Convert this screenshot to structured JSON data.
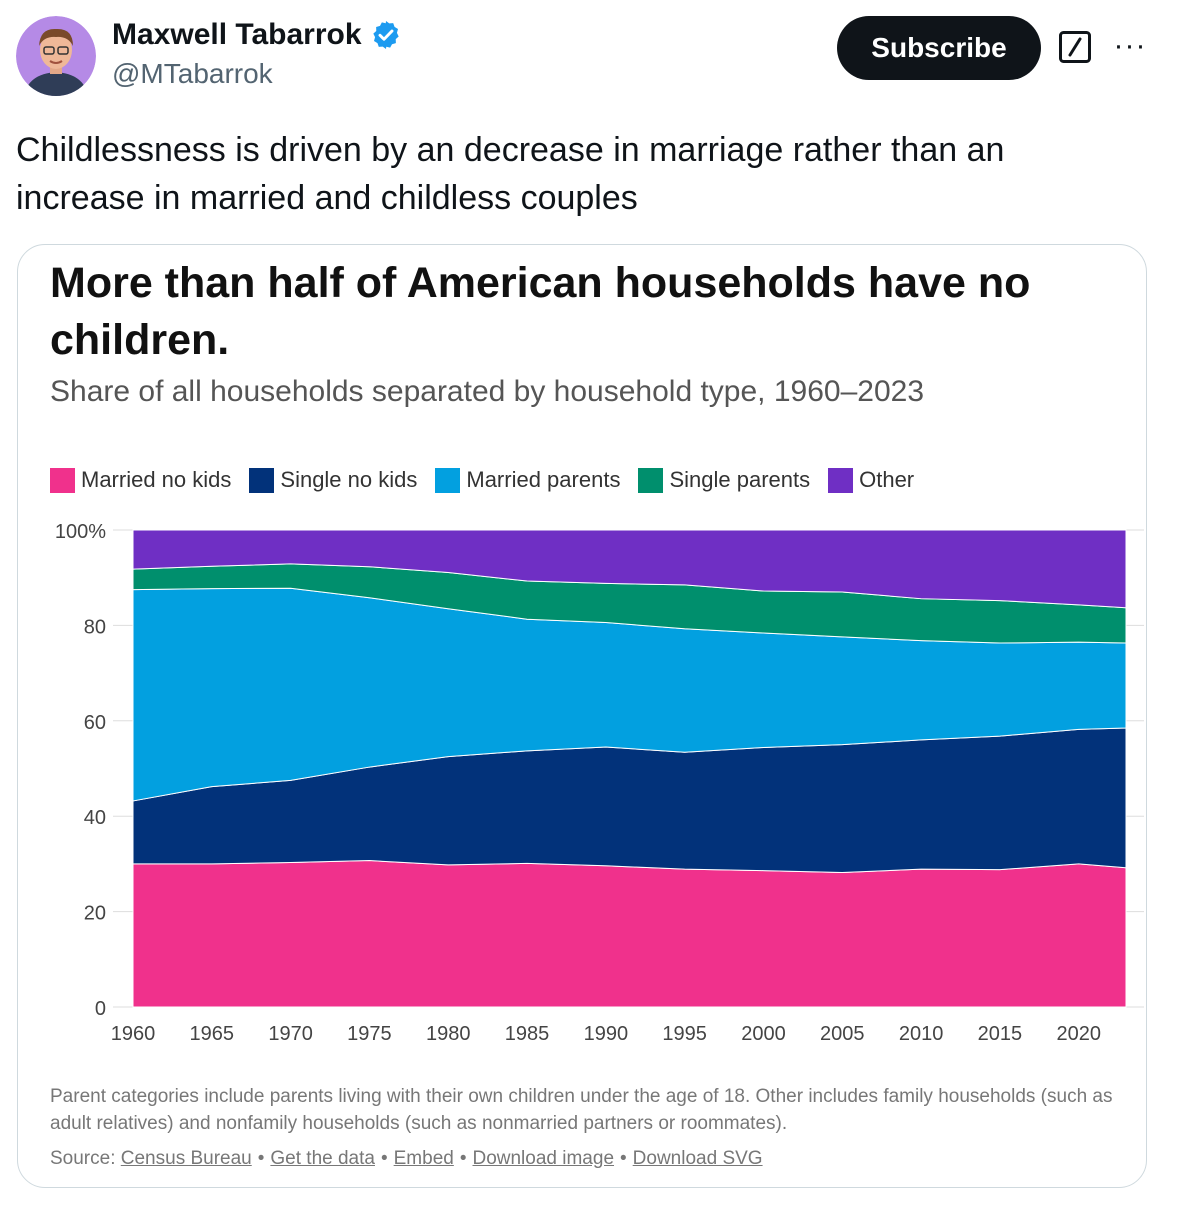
{
  "author": {
    "name": "Maxwell Tabarrok",
    "handle": "@MTabarrok",
    "verified_color": "#1d9bf0"
  },
  "actions": {
    "subscribe_label": "Subscribe",
    "grok_icon": "grok-slash-icon",
    "more_icon": "more-horizontal-icon",
    "more_label": "···"
  },
  "tweet": {
    "text": "Childlessness is driven by an decrease in marriage rather than an increase in married and childless couples"
  },
  "card": {
    "title": "More than half of American households have no children.",
    "subtitle": "Share of all households separated by household type, 1960–2023",
    "note": "Parent categories include parents living with their own children under the age of 18. Other includes family households (such as adult relatives) and nonfamily households (such as nonmarried partners or roommates).",
    "source_label": "Source:",
    "links": [
      "Census Bureau",
      "Get the data",
      "Embed",
      "Download image",
      "Download SVG"
    ],
    "link_separator": "•"
  },
  "chart_data": {
    "type": "area",
    "stacked": true,
    "x": [
      1960,
      1965,
      1970,
      1975,
      1980,
      1985,
      1990,
      1995,
      2000,
      2005,
      2010,
      2015,
      2020,
      2023
    ],
    "xticks": [
      1960,
      1965,
      1970,
      1975,
      1980,
      1985,
      1990,
      1995,
      2000,
      2005,
      2010,
      2015,
      2020
    ],
    "yticks": [
      0,
      20,
      40,
      60,
      80,
      100
    ],
    "ytick_labels": [
      "0",
      "20",
      "40",
      "60",
      "80",
      "100%"
    ],
    "ylim": [
      0,
      100
    ],
    "grid": true,
    "legend_position": "top-left",
    "series": [
      {
        "name": "Married no kids",
        "color": "#f0318c",
        "values": [
          30,
          30,
          30.3,
          30.7,
          29.8,
          30.1,
          29.6,
          28.9,
          28.6,
          28.2,
          28.9,
          28.8,
          30,
          29.2
        ]
      },
      {
        "name": "Single no kids",
        "color": "#02327a",
        "values": [
          13.2,
          16.2,
          17.2,
          19.6,
          22.7,
          23.6,
          24.9,
          24.5,
          25.8,
          26.8,
          27.1,
          28,
          28.2,
          29.3
        ]
      },
      {
        "name": "Married parents",
        "color": "#02a0e0",
        "values": [
          44.3,
          41.5,
          40.3,
          35.5,
          31,
          27.6,
          26.1,
          25.9,
          24,
          22.6,
          20.8,
          19.5,
          18.3,
          17.8
        ]
      },
      {
        "name": "Single parents",
        "color": "#008f6d",
        "values": [
          4.3,
          4.7,
          5.1,
          6.5,
          7.6,
          8,
          8.2,
          9.2,
          8.8,
          9.4,
          8.8,
          8.9,
          7.8,
          7.4
        ]
      },
      {
        "name": "Other",
        "color": "#6f2fc4",
        "values": [
          8.2,
          7.6,
          7.1,
          7.7,
          8.9,
          10.7,
          11.2,
          11.5,
          12.8,
          13,
          14.4,
          14.8,
          15.7,
          16.3
        ]
      }
    ]
  }
}
